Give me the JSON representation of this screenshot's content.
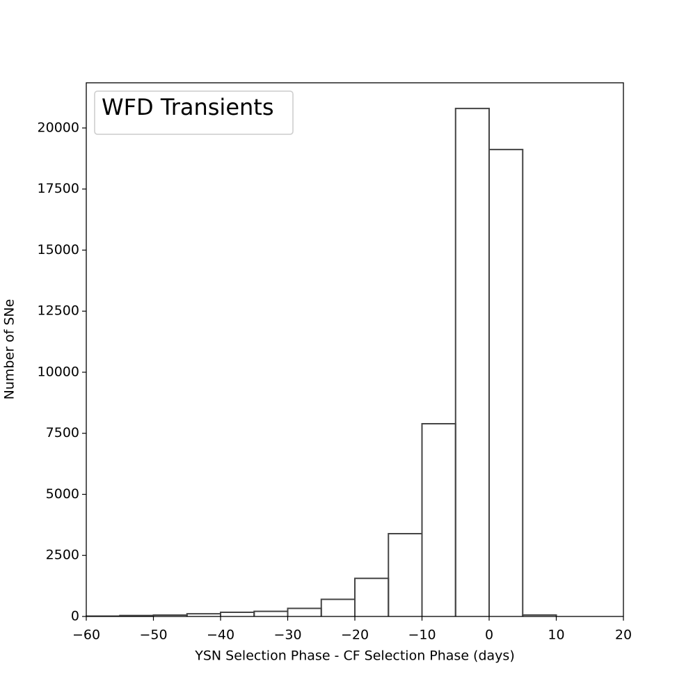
{
  "chart_data": {
    "type": "histogram",
    "xlabel": "YSN Selection Phase - CF Selection Phase (days)",
    "ylabel": "Number of SNe",
    "bins": [
      -60,
      -55,
      -50,
      -45,
      -40,
      -35,
      -30,
      -25,
      -20,
      -15,
      -10,
      -5,
      0,
      5,
      10
    ],
    "series": [
      {
        "name": "WFD Transients",
        "color": "#444444",
        "values": [
          15,
          40,
          57,
          110,
          170,
          210,
          330,
          700,
          1560,
          3390,
          7890,
          20800,
          19120,
          60
        ]
      }
    ],
    "xlim": [
      -60,
      20
    ],
    "xticks": [
      {
        "value": -60,
        "label": "−60"
      },
      {
        "value": -50,
        "label": "−50"
      },
      {
        "value": -40,
        "label": "−40"
      },
      {
        "value": -30,
        "label": "−30"
      },
      {
        "value": -20,
        "label": "−20"
      },
      {
        "value": -10,
        "label": "−10"
      },
      0,
      10,
      20
    ],
    "ylim": [
      0,
      21850
    ],
    "yticks": [
      0,
      2500,
      5000,
      7500,
      10000,
      12500,
      15000,
      17500,
      20000
    ],
    "legend": "upper left"
  }
}
